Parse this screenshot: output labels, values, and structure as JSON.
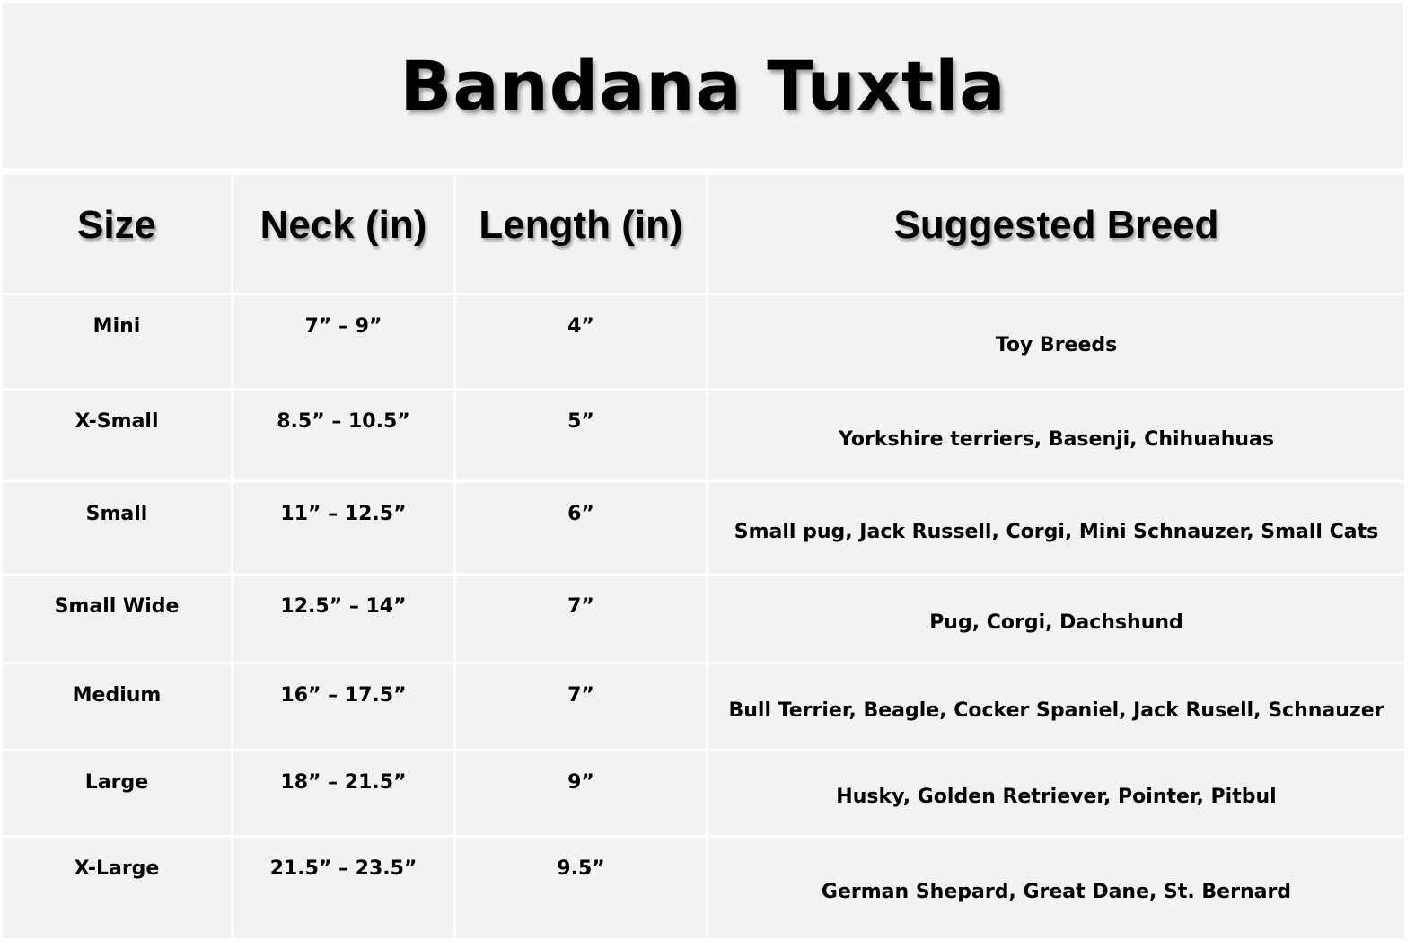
{
  "title": "Bandana Tuxtla",
  "table": {
    "headers": [
      "Size",
      "Neck (in)",
      "Length (in)",
      "Suggested Breed"
    ],
    "rows": [
      [
        "Mini",
        "7” – 9”",
        "4”",
        "Toy Breeds"
      ],
      [
        "X-Small",
        "8.5” – 10.5”",
        "5”",
        "Yorkshire terriers, Basenji, Chihuahuas"
      ],
      [
        "Small",
        "11” – 12.5”",
        "6”",
        "Small pug, Jack Russell, Corgi, Mini Schnauzer, Small Cats"
      ],
      [
        "Small Wide",
        "12.5” – 14”",
        "7”",
        "Pug, Corgi, Dachshund"
      ],
      [
        "Medium",
        "16” – 17.5”",
        "7”",
        "Bull Terrier, Beagle, Cocker Spaniel, Jack Rusell, Schnauzer"
      ],
      [
        "Large",
        "18” – 21.5”",
        "9”",
        "Husky, Golden Retriever, Pointer, Pitbul"
      ],
      [
        "X-Large",
        "21.5” – 23.5”",
        "9.5”",
        "German Shepard, Great Dane, St. Bernard"
      ]
    ]
  },
  "colors": {
    "cell_background": "#f2f2f2",
    "grid_lines": "#ffffff",
    "text": "#000000"
  }
}
